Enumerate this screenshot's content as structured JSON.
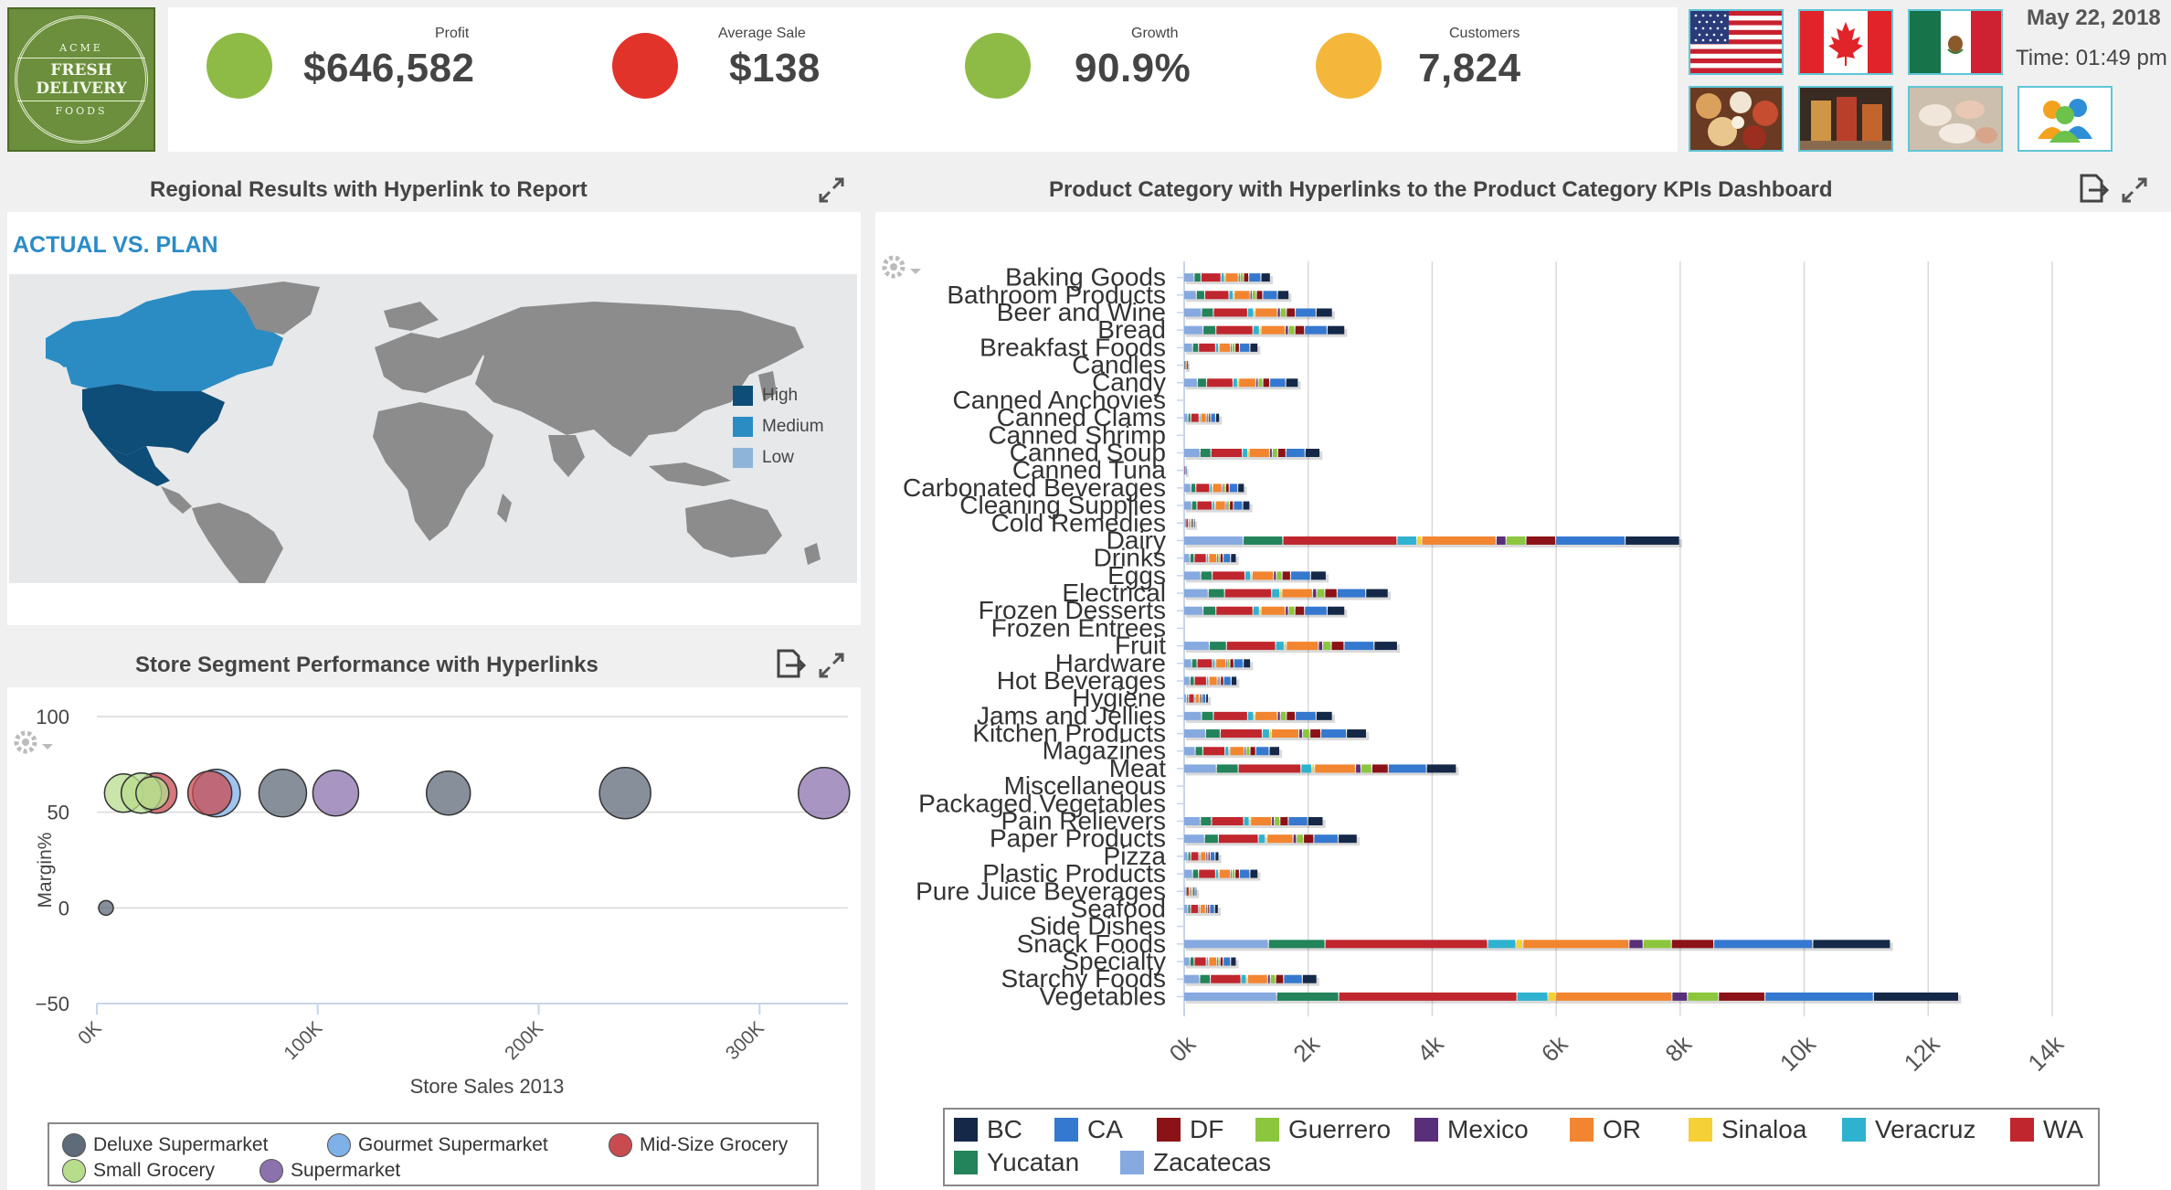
{
  "brand": {
    "top": "ACME",
    "name": "FRESH DELIVERY",
    "bottom": "FOODS"
  },
  "kpis": [
    {
      "label": "Profit",
      "value": "$646,582",
      "color": "#8dbb45"
    },
    {
      "label": "Average Sale",
      "value": "$138",
      "color": "#e2332b"
    },
    {
      "label": "Growth",
      "value": "90.9%",
      "color": "#8dbb45"
    },
    {
      "label": "Customers",
      "value": "7,824",
      "color": "#f4b73b"
    }
  ],
  "header": {
    "date": "May 22, 2018",
    "time": "Time: 01:49 pm"
  },
  "nav_icons": [
    "us-flag-icon",
    "canada-flag-icon",
    "mexico-flag-icon",
    "food-photo-icon",
    "drinks-photo-icon",
    "seafood-photo-icon",
    "users-icon"
  ],
  "map_panel": {
    "title": "Regional Results with Hyperlink to Report",
    "subtitle": "ACTUAL VS. PLAN",
    "legend": [
      {
        "label": "High",
        "color": "#0e4d77"
      },
      {
        "label": "Medium",
        "color": "#2b8cc4"
      },
      {
        "label": "Low",
        "color": "#8fb4da"
      }
    ]
  },
  "bubble_panel": {
    "title": "Store Segment Performance with Hyperlinks",
    "chart_data": {
      "type": "scatter",
      "xlabel": "Store Sales 2013",
      "ylabel": "Margin%",
      "x_ticks": [
        "0K",
        "100K",
        "200K",
        "300K"
      ],
      "y_ticks": [
        "100",
        "50",
        "0",
        "−50"
      ],
      "xlim": [
        0,
        340000
      ],
      "ylim": [
        -50,
        100
      ],
      "series": [
        {
          "name": "Deluxe Supermarket",
          "color": "#5f6b78",
          "points": [
            {
              "x": 80000,
              "y": 60,
              "r": 26
            },
            {
              "x": 155000,
              "y": 60,
              "r": 24
            },
            {
              "x": 235000,
              "y": 60,
              "r": 28
            },
            {
              "x": 0,
              "y": 0,
              "r": 8
            }
          ]
        },
        {
          "name": "Gourmet Supermarket",
          "color": "#7fb0e8",
          "points": [
            {
              "x": 50000,
              "y": 60,
              "r": 26
            }
          ]
        },
        {
          "name": "Mid-Size Grocery",
          "color": "#c94b50",
          "points": [
            {
              "x": 23000,
              "y": 60,
              "r": 22
            },
            {
              "x": 47000,
              "y": 60,
              "r": 24
            }
          ]
        },
        {
          "name": "Small Grocery",
          "color": "#b7dc8c",
          "points": [
            {
              "x": 8000,
              "y": 60,
              "r": 21
            },
            {
              "x": 16000,
              "y": 60,
              "r": 22
            },
            {
              "x": 21000,
              "y": 60,
              "r": 18
            }
          ]
        },
        {
          "name": "Supermarket",
          "color": "#8b72ad",
          "points": [
            {
              "x": 104000,
              "y": 60,
              "r": 25
            },
            {
              "x": 325000,
              "y": 60,
              "r": 28
            }
          ]
        }
      ]
    }
  },
  "bar_panel": {
    "title": "Product Category with Hyperlinks to the Product Category KPIs Dashboard",
    "chart_data": {
      "type": "bar",
      "stacked": true,
      "orientation": "horizontal",
      "xlim": [
        0,
        14000
      ],
      "x_ticks": [
        "0k",
        "2k",
        "4k",
        "6k",
        "8k",
        "10k",
        "12k",
        "14k"
      ],
      "categories": [
        "Baking Goods",
        "Bathroom Products",
        "Beer and Wine",
        "Bread",
        "Breakfast Foods",
        "Candles",
        "Candy",
        "Canned Anchovies",
        "Canned Clams",
        "Canned Shrimp",
        "Canned Soup",
        "Canned Tuna",
        "Carbonated Beverages",
        "Cleaning Supplies",
        "Cold Remedies",
        "Dairy",
        "Drinks",
        "Eggs",
        "Electrical",
        "Frozen Desserts",
        "Frozen Entrees",
        "Fruit",
        "Hardware",
        "Hot Beverages",
        "Hygiene",
        "Jams and Jellies",
        "Kitchen Products",
        "Magazines",
        "Meat",
        "Miscellaneous",
        "Packaged Vegetables",
        "Pain Relievers",
        "Paper Products",
        "Pizza",
        "Plastic Products",
        "Pure Juice Beverages",
        "Seafood",
        "Side Dishes",
        "Snack Foods",
        "Specialty",
        "Starchy Foods",
        "Vegetables"
      ],
      "totals": [
        1400,
        1700,
        2400,
        2600,
        1200,
        60,
        1850,
        0,
        580,
        0,
        2200,
        40,
        980,
        1070,
        180,
        8000,
        850,
        2300,
        3300,
        2600,
        0,
        3450,
        1080,
        860,
        400,
        2400,
        2950,
        1550,
        4400,
        0,
        0,
        2250,
        2800,
        570,
        1200,
        210,
        560,
        0,
        11400,
        850,
        2150,
        12500
      ],
      "series": [
        {
          "name": "Zacatecas",
          "color": "#86a9df",
          "share": 0.12
        },
        {
          "name": "Yucatan",
          "color": "#23835a",
          "share": 0.08
        },
        {
          "name": "WA",
          "color": "#c0262e",
          "share": 0.23
        },
        {
          "name": "Veracruz",
          "color": "#2fb2cf",
          "share": 0.04
        },
        {
          "name": "Sinaloa",
          "color": "#f5d036",
          "share": 0.01
        },
        {
          "name": "OR",
          "color": "#f2852f",
          "share": 0.15
        },
        {
          "name": "Mexico",
          "color": "#5a2f7a",
          "share": 0.02
        },
        {
          "name": "Guerrero",
          "color": "#8cc63e",
          "share": 0.04
        },
        {
          "name": "DF",
          "color": "#8b1216",
          "share": 0.06
        },
        {
          "name": "CA",
          "color": "#3578cf",
          "share": 0.14
        },
        {
          "name": "BC",
          "color": "#152847",
          "share": 0.11
        }
      ],
      "legend_order": [
        "BC",
        "CA",
        "DF",
        "Guerrero",
        "Mexico",
        "OR",
        "Sinaloa",
        "Veracruz",
        "WA",
        "Yucatan",
        "Zacatecas"
      ]
    }
  }
}
